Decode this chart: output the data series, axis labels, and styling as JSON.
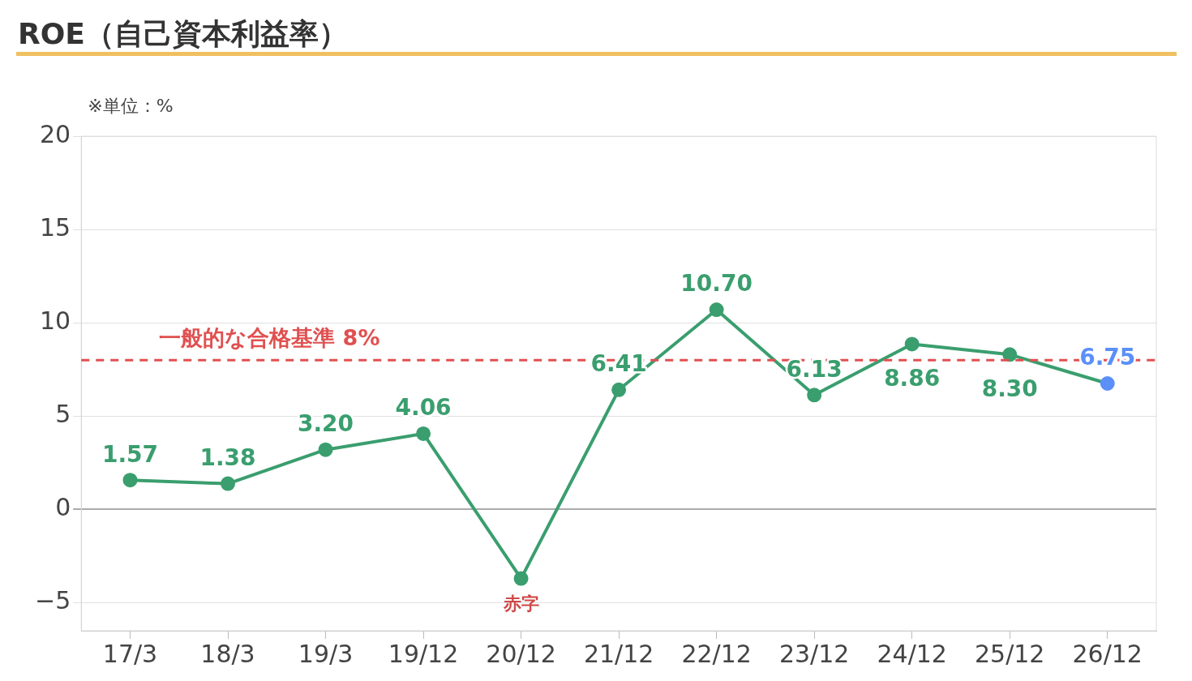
{
  "chart_data": {
    "type": "line",
    "title": "ROE（自己資本利益率）",
    "subtitle": "※単位：%",
    "categories": [
      "17/3",
      "18/3",
      "19/3",
      "19/12",
      "20/12",
      "21/12",
      "22/12",
      "23/12",
      "24/12",
      "25/12",
      "26/12"
    ],
    "series": [
      {
        "color": "#3a9e6e",
        "colors": [
          "#3a9e6e",
          "#3a9e6e",
          "#3a9e6e",
          "#3a9e6e",
          "#3a9e6e",
          "#3a9e6e",
          "#3a9e6e",
          "#3a9e6e",
          "#3a9e6e",
          "#3a9e6e",
          "#5b8ff9"
        ],
        "values": [
          1.57,
          1.38,
          3.2,
          4.06,
          -3.7,
          6.41,
          10.7,
          6.13,
          8.86,
          8.3,
          6.75
        ],
        "value_labels": [
          "1.57",
          "1.38",
          "3.20",
          "4.06",
          null,
          "6.41",
          "10.70",
          "6.13",
          "8.86",
          "8.30",
          "6.75"
        ]
      }
    ],
    "ylim": [
      -6.5,
      20
    ],
    "yticks": [
      {
        "value": -5,
        "label": "−5"
      },
      0,
      5,
      10,
      15,
      20
    ],
    "ref_lines": [
      {
        "axis": "y",
        "value": 8,
        "label": "一般的な合格基準 8%",
        "color": "#e05050",
        "line_style": "dashed"
      }
    ],
    "annotations": [
      {
        "text": "赤字",
        "x": "20/12",
        "y": -3.7
      }
    ],
    "grid": "y",
    "legend": false,
    "marker": "circle",
    "line_style": "solid"
  }
}
